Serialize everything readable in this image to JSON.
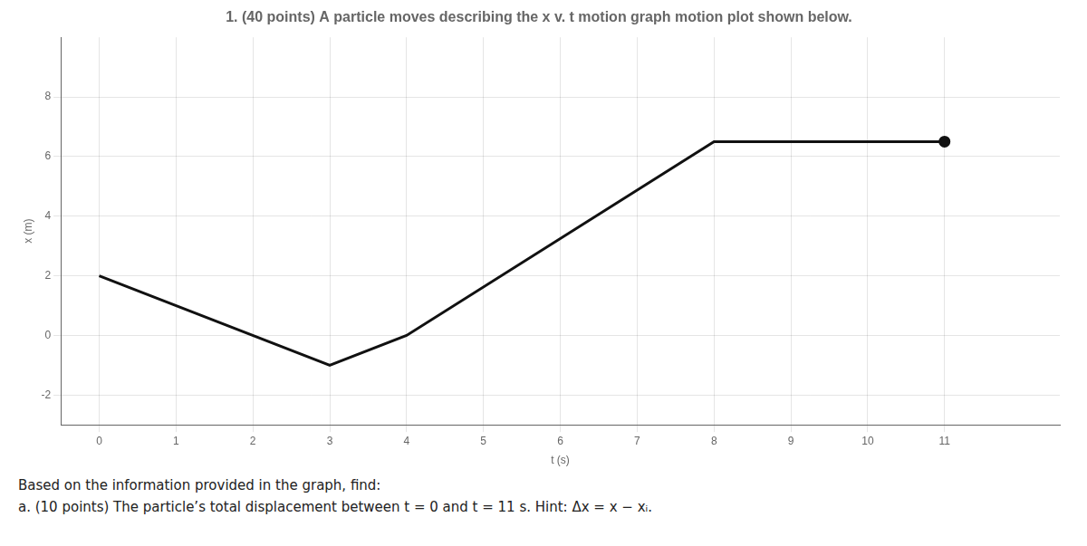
{
  "chart_data": {
    "type": "line",
    "title": "1. (40 points) A particle moves describing the x v. t motion graph motion plot shown below.",
    "xlabel": "t (s)",
    "ylabel": "x (m)",
    "x": [
      0,
      3,
      4,
      8,
      11
    ],
    "values": [
      2,
      -1,
      0,
      6.5,
      6.5
    ],
    "color": "#111111",
    "xlim": [
      -0.5,
      12.5
    ],
    "ylim": [
      -3.0,
      10.0
    ],
    "xticks": [
      0,
      1,
      2,
      3,
      4,
      5,
      6,
      7,
      8,
      9,
      10,
      11
    ],
    "yticks": [
      -2,
      0,
      2,
      4,
      6,
      8
    ],
    "grid": true,
    "annotations": [
      "Based on the information provided in the graph, find:",
      "a. (10 points) The particle’s total displacement between t = 0 and t = 11 s.  Hint: Δx = x − xᵢ."
    ]
  }
}
